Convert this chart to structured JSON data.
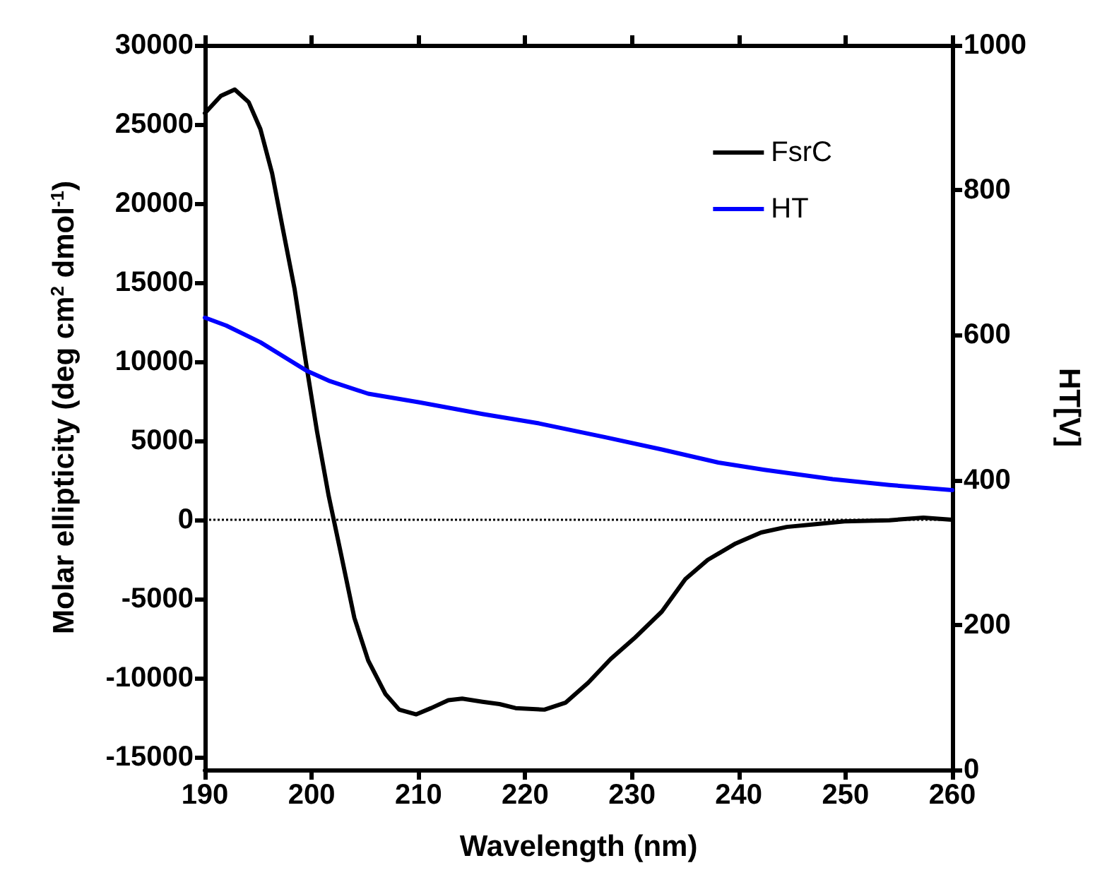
{
  "chart_data": {
    "type": "line",
    "xlabel": "Wavelength (nm)",
    "ylabel": "Molar ellipticity (deg cm$^{2}$ dmol$^{-1}$)",
    "y2label": "HT[V]",
    "xlim": [
      190,
      260
    ],
    "xticks": [
      190,
      200,
      210,
      220,
      230,
      240,
      250,
      260
    ],
    "ylim": [
      -15800,
      30000
    ],
    "yticks": [
      -15000,
      -10000,
      -5000,
      0,
      5000,
      10000,
      15000,
      20000,
      25000,
      30000
    ],
    "y2lim": [
      0,
      1000
    ],
    "y2ticks": [
      0,
      200,
      400,
      600,
      800,
      1000
    ],
    "grid": false,
    "legend": "top right",
    "marker": "none",
    "line_style": "solid",
    "ref_lines": [
      {
        "axis": "y",
        "value": 0,
        "color": "#000000",
        "line_style": "dotted"
      }
    ],
    "series": [
      {
        "name": "FsrC",
        "color": "#000000",
        "x": [
          190,
          191.5,
          192.8,
          194.1,
          195.2,
          196.3,
          197.3,
          198.4,
          199.5,
          200.5,
          201.6,
          202.7,
          204,
          205.3,
          206.9,
          208.2,
          209.8,
          211.2,
          212.8,
          214.1,
          216,
          217.6,
          219.1,
          221.8,
          223.8,
          225.9,
          228,
          230.2,
          232.8,
          235,
          237.1,
          239.7,
          242.1,
          244.5,
          247.2,
          249.9,
          254.1,
          257.3,
          260
        ],
        "values": [
          25700,
          26800,
          27200,
          26400,
          24700,
          21900,
          18400,
          14600,
          9800,
          5600,
          1500,
          -2000,
          -6200,
          -8900,
          -11000,
          -12000,
          -12300,
          -11900,
          -11400,
          -11300,
          -11500,
          -11650,
          -11900,
          -12000,
          -11550,
          -10300,
          -8800,
          -7500,
          -5800,
          -3750,
          -2530,
          -1500,
          -800,
          -450,
          -280,
          -100,
          -30,
          140,
          0
        ]
      },
      {
        "name": "HT",
        "color": "#0000ff",
        "axis": "y2",
        "x": [
          190,
          192,
          195.2,
          199.5,
          201.6,
          205.3,
          210.1,
          216,
          221.3,
          227.5,
          232.8,
          238.1,
          242.4,
          248.8,
          254.1,
          260
        ],
        "values": [
          624,
          613,
          590,
          551,
          537,
          519,
          507,
          491,
          478,
          459,
          442,
          424,
          414,
          401,
          393,
          386
        ]
      }
    ]
  }
}
